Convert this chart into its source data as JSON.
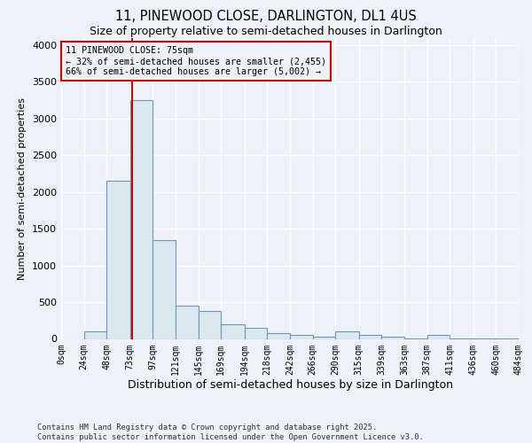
{
  "title1": "11, PINEWOOD CLOSE, DARLINGTON, DL1 4US",
  "title2": "Size of property relative to semi-detached houses in Darlington",
  "xlabel": "Distribution of semi-detached houses by size in Darlington",
  "ylabel": "Number of semi-detached properties",
  "footnote": "Contains HM Land Registry data © Crown copyright and database right 2025.\nContains public sector information licensed under the Open Government Licence v3.0.",
  "bin_edges": [
    0,
    24,
    48,
    73,
    97,
    121,
    145,
    169,
    194,
    218,
    242,
    266,
    290,
    315,
    339,
    363,
    387,
    411,
    436,
    460,
    484
  ],
  "bar_heights": [
    0,
    100,
    2150,
    3250,
    1350,
    450,
    380,
    200,
    150,
    75,
    50,
    30,
    100,
    50,
    30,
    10,
    50,
    5,
    5,
    5
  ],
  "bar_color": "#dce8f0",
  "bar_edge_color": "#6699bb",
  "property_size": 75,
  "property_line_color": "#cc0000",
  "annotation_line1": "11 PINEWOOD CLOSE: 75sqm",
  "annotation_line2": "← 32% of semi-detached houses are smaller (2,455)",
  "annotation_line3": "66% of semi-detached houses are larger (5,002) →",
  "annotation_box_color": "#cc0000",
  "ylim": [
    0,
    4100
  ],
  "yticks": [
    0,
    500,
    1000,
    1500,
    2000,
    2500,
    3000,
    3500,
    4000
  ],
  "bg_color": "#eef2f7",
  "grid_color": "#ffffff",
  "title1_fontsize": 10.5,
  "title2_fontsize": 9
}
